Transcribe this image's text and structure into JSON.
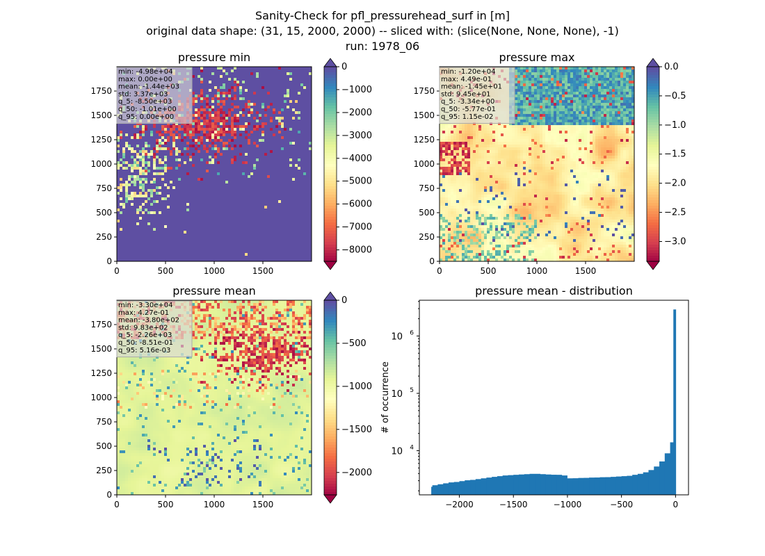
{
  "figure": {
    "title_lines": [
      "Sanity-Check for pfl_pressurehead_surf in [m]",
      "original data shape: (31, 15, 2000, 2000) -- sliced with: (slice(None, None, None), -1)",
      "run: 1978_06"
    ]
  },
  "panels": [
    {
      "title": "pressure min",
      "x_ticks": [
        "0",
        "500",
        "1000",
        "1500"
      ],
      "y_ticks": [
        "0",
        "250",
        "500",
        "750",
        "1000",
        "1250",
        "1500",
        "1750"
      ],
      "stats": [
        "min: -4.98e+04",
        "max: 0.00e+00",
        "mean: -1.44e+03",
        "std: 3.37e+03",
        "q_5: -8.50e+03",
        "q_50: -1.01e+00",
        "q_95: 0.00e+00"
      ],
      "colorbar": {
        "vmin": -8500,
        "vmax": 0,
        "ticks": [
          0,
          -1000,
          -2000,
          -3000,
          -4000,
          -5000,
          -6000,
          -7000,
          -8000
        ],
        "extend": "both"
      },
      "base_level": 1.0
    },
    {
      "title": "pressure max",
      "x_ticks": [
        "0",
        "500",
        "1000",
        "1500"
      ],
      "y_ticks": [
        "0",
        "250",
        "500",
        "750",
        "1000",
        "1250",
        "1500",
        "1750"
      ],
      "stats": [
        "min: -1.20e+04",
        "max: 4.49e-01",
        "mean: -1.45e+01",
        "std: 9.45e+01",
        "q_5: -3.34e+00",
        "q_50: -5.77e-01",
        "q_95: 1.15e-02"
      ],
      "colorbar": {
        "vmin": -3.34,
        "vmax": 0.0,
        "ticks": [
          0.0,
          -0.5,
          -1.0,
          -1.5,
          -2.0,
          -2.5,
          -3.0
        ],
        "tick_labels": [
          "0.0",
          "−0.5",
          "−1.0",
          "−1.5",
          "−2.0",
          "−2.5",
          "−3.0"
        ],
        "extend": "both"
      },
      "base_level": 0.62
    },
    {
      "title": "pressure mean",
      "x_ticks": [
        "0",
        "500",
        "1000",
        "1500"
      ],
      "y_ticks": [
        "0",
        "250",
        "500",
        "750",
        "1000",
        "1250",
        "1500",
        "1750"
      ],
      "stats": [
        "min: -3.30e+04",
        "max: 4.27e-01",
        "mean: -3.80e+02",
        "std: 9.83e+02",
        "q_5: -2.26e+03",
        "q_50: -8.51e-01",
        "q_95: 5.16e-03"
      ],
      "colorbar": {
        "vmin": -2260,
        "vmax": 0,
        "ticks": [
          0,
          -500,
          -1000,
          -1500,
          -2000
        ],
        "extend": "both"
      },
      "base_level": 0.66
    }
  ],
  "histogram": {
    "title": "pressure mean - distribution",
    "ylabel": "# of occurrence",
    "x_ticks": [
      -2000,
      -1500,
      -1000,
      -500,
      0
    ],
    "x_tick_labels": [
      "−2000",
      "−1500",
      "−1000",
      "−500",
      "0"
    ],
    "y_ticks": [
      {
        "base": "10",
        "exp": "4",
        "value": 10000
      },
      {
        "base": "10",
        "exp": "5",
        "value": 100000
      },
      {
        "base": "10",
        "exp": "6",
        "value": 1000000
      }
    ]
  },
  "chart_data": {
    "type": "bar",
    "title": "pressure mean - distribution",
    "xlabel": "",
    "ylabel": "# of occurrence",
    "y_scale": "log",
    "xlim": [
      -2370,
      120
    ],
    "ylim": [
      1700,
      4200000
    ],
    "bin_range": [
      -2260,
      0
    ],
    "bins": [
      {
        "x": -2250,
        "count": 2350
      },
      {
        "x": -2200,
        "count": 2500
      },
      {
        "x": -2150,
        "count": 2600
      },
      {
        "x": -2100,
        "count": 2700
      },
      {
        "x": -2050,
        "count": 2800
      },
      {
        "x": -2000,
        "count": 2850
      },
      {
        "x": -1950,
        "count": 2950
      },
      {
        "x": -1900,
        "count": 3050
      },
      {
        "x": -1850,
        "count": 3100
      },
      {
        "x": -1800,
        "count": 3200
      },
      {
        "x": -1750,
        "count": 3300
      },
      {
        "x": -1700,
        "count": 3400
      },
      {
        "x": -1650,
        "count": 3500
      },
      {
        "x": -1600,
        "count": 3600
      },
      {
        "x": -1550,
        "count": 3700
      },
      {
        "x": -1500,
        "count": 3750
      },
      {
        "x": -1450,
        "count": 3800
      },
      {
        "x": -1400,
        "count": 3850
      },
      {
        "x": -1350,
        "count": 3900
      },
      {
        "x": -1300,
        "count": 3950
      },
      {
        "x": -1250,
        "count": 3900
      },
      {
        "x": -1200,
        "count": 3850
      },
      {
        "x": -1150,
        "count": 3800
      },
      {
        "x": -1100,
        "count": 3800
      },
      {
        "x": -1050,
        "count": 3700
      },
      {
        "x": -1000,
        "count": 3200
      },
      {
        "x": -950,
        "count": 3300
      },
      {
        "x": -900,
        "count": 3300
      },
      {
        "x": -850,
        "count": 3350
      },
      {
        "x": -800,
        "count": 3350
      },
      {
        "x": -750,
        "count": 3400
      },
      {
        "x": -700,
        "count": 3400
      },
      {
        "x": -650,
        "count": 3450
      },
      {
        "x": -600,
        "count": 3450
      },
      {
        "x": -550,
        "count": 3500
      },
      {
        "x": -500,
        "count": 3550
      },
      {
        "x": -450,
        "count": 3600
      },
      {
        "x": -400,
        "count": 3650
      },
      {
        "x": -350,
        "count": 3800
      },
      {
        "x": -300,
        "count": 3950
      },
      {
        "x": -250,
        "count": 4200
      },
      {
        "x": -200,
        "count": 4600
      },
      {
        "x": -150,
        "count": 5300
      },
      {
        "x": -100,
        "count": 6500
      },
      {
        "x": -50,
        "count": 9000
      },
      {
        "x": -20,
        "count": 14000
      },
      {
        "x": 0,
        "count": 2900000
      }
    ]
  }
}
